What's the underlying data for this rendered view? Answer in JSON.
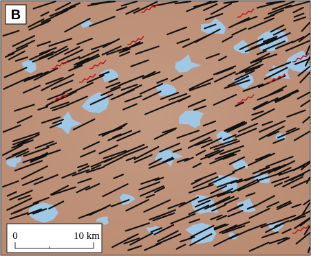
{
  "panel_label": "B",
  "scale_bar": {
    "start_label": "0",
    "end_label": "10 km"
  }
}
